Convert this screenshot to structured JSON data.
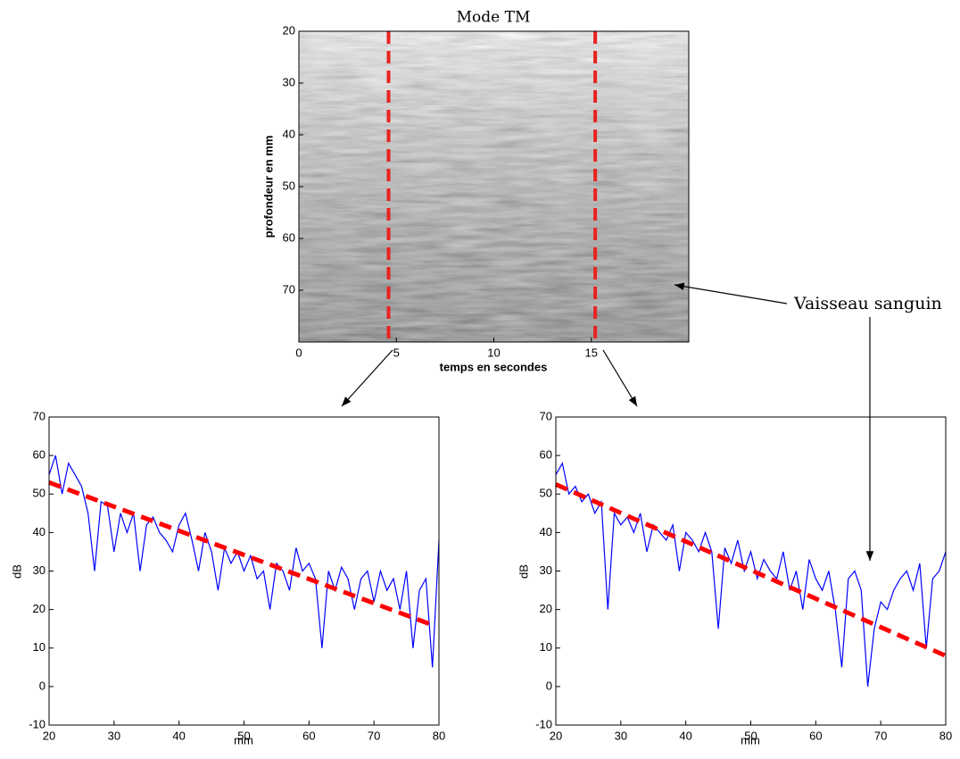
{
  "chart_data": [
    {
      "type": "image",
      "title": "Mode TM",
      "xlabel": "temps en secondes",
      "ylabel": "profondeur en mm",
      "xlim": [
        0,
        20
      ],
      "ylim": [
        20,
        80
      ],
      "y_inverted": true,
      "xticks": [
        0,
        5,
        10,
        15
      ],
      "yticks": [
        20,
        30,
        40,
        50,
        60,
        70
      ],
      "vlines": [
        4.6,
        15.2
      ],
      "vline_color": "#e8231f",
      "annotation": "Vaisseau sanguin"
    },
    {
      "type": "line",
      "xlabel": "mm",
      "ylabel": "dB",
      "xlim": [
        20,
        80
      ],
      "ylim": [
        -10,
        70
      ],
      "xticks": [
        20,
        30,
        40,
        50,
        60,
        70,
        80
      ],
      "yticks": [
        -10,
        0,
        10,
        20,
        30,
        40,
        50,
        60,
        70
      ],
      "x": [
        20,
        21,
        22,
        23,
        24,
        25,
        26,
        27,
        28,
        29,
        30,
        31,
        32,
        33,
        34,
        35,
        36,
        37,
        38,
        39,
        40,
        41,
        42,
        43,
        44,
        45,
        46,
        47,
        48,
        49,
        50,
        51,
        52,
        53,
        54,
        55,
        56,
        57,
        58,
        59,
        60,
        61,
        62,
        63,
        64,
        65,
        66,
        67,
        68,
        69,
        70,
        71,
        72,
        73,
        74,
        75,
        76,
        77,
        78,
        79,
        80
      ],
      "series": [
        {
          "color": "#0000ff",
          "values": [
            55,
            60,
            50,
            58,
            55,
            52,
            45,
            30,
            48,
            47,
            35,
            45,
            40,
            45,
            30,
            42,
            44,
            40,
            38,
            35,
            42,
            45,
            38,
            30,
            40,
            35,
            25,
            36,
            32,
            35,
            30,
            34,
            28,
            30,
            20,
            32,
            30,
            25,
            36,
            30,
            32,
            28,
            10,
            30,
            25,
            31,
            28,
            20,
            28,
            30,
            22,
            30,
            25,
            28,
            20,
            30,
            10,
            25,
            28,
            5,
            38
          ]
        }
      ],
      "trend_line": {
        "color": "#ff0000",
        "x": [
          20,
          79
        ],
        "values": [
          53,
          16
        ]
      }
    },
    {
      "type": "line",
      "xlabel": "mm",
      "ylabel": "dB",
      "xlim": [
        20,
        80
      ],
      "ylim": [
        -10,
        70
      ],
      "xticks": [
        20,
        30,
        40,
        50,
        60,
        70,
        80
      ],
      "yticks": [
        -10,
        0,
        10,
        20,
        30,
        40,
        50,
        60,
        70
      ],
      "x": [
        20,
        21,
        22,
        23,
        24,
        25,
        26,
        27,
        28,
        29,
        30,
        31,
        32,
        33,
        34,
        35,
        36,
        37,
        38,
        39,
        40,
        41,
        42,
        43,
        44,
        45,
        46,
        47,
        48,
        49,
        50,
        51,
        52,
        53,
        54,
        55,
        56,
        57,
        58,
        59,
        60,
        61,
        62,
        63,
        64,
        65,
        66,
        67,
        68,
        69,
        70,
        71,
        72,
        73,
        74,
        75,
        76,
        77,
        78,
        79,
        80
      ],
      "series": [
        {
          "color": "#0000ff",
          "values": [
            55,
            58,
            50,
            52,
            48,
            50,
            45,
            48,
            20,
            45,
            42,
            44,
            40,
            45,
            35,
            42,
            40,
            38,
            42,
            30,
            40,
            38,
            35,
            40,
            35,
            15,
            36,
            32,
            38,
            30,
            35,
            28,
            33,
            30,
            28,
            35,
            25,
            30,
            20,
            33,
            28,
            25,
            30,
            20,
            5,
            28,
            30,
            25,
            0,
            15,
            22,
            20,
            25,
            28,
            30,
            25,
            32,
            10,
            28,
            30,
            35
          ]
        }
      ],
      "trend_line": {
        "color": "#ff0000",
        "x": [
          20,
          80
        ],
        "values": [
          52.5,
          8
        ]
      }
    }
  ]
}
